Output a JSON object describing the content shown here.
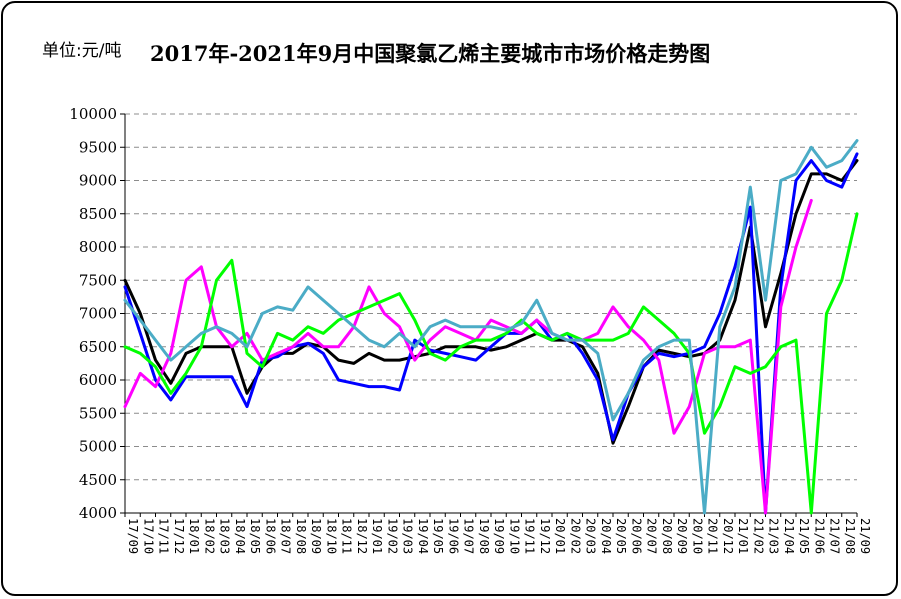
{
  "unit_label": "单位:元/吨",
  "title": "2017年-2021年9月中国聚氯乙烯主要城市市场价格走势图",
  "chart_data": {
    "type": "line",
    "title": "2017年-2021年9月中国聚氯乙烯主要城市市场价格走势图",
    "ylabel": "单位:元/吨",
    "xlabel": "",
    "ylim": [
      4000,
      10000
    ],
    "yticks": [
      4000,
      4500,
      5000,
      5500,
      6000,
      6500,
      7000,
      7500,
      8000,
      8500,
      9000,
      9500,
      10000
    ],
    "grid": true,
    "legend": "none",
    "x": [
      "17/09",
      "17/10",
      "17/11",
      "17/12",
      "18/01",
      "18/02",
      "18/03",
      "18/04",
      "18/05",
      "18/06",
      "18/07",
      "18/08",
      "18/09",
      "18/10",
      "18/11",
      "18/12",
      "19/01",
      "19/02",
      "19/03",
      "19/04",
      "19/05",
      "19/06",
      "19/07",
      "19/08",
      "19/09",
      "19/10",
      "19/11",
      "19/12",
      "20/01",
      "20/02",
      "20/03",
      "20/04",
      "20/05",
      "20/06",
      "20/07",
      "20/08",
      "20/09",
      "20/10",
      "20/11",
      "20/12",
      "21/01",
      "21/02",
      "21/03",
      "21/04",
      "21/05",
      "21/06",
      "21/07",
      "21/08",
      "21/09"
    ],
    "series": [
      {
        "color": "#000000",
        "values": [
          7500,
          7000,
          6300,
          5950,
          6400,
          6500,
          6500,
          6500,
          5800,
          6200,
          6400,
          6400,
          6550,
          6500,
          6300,
          6250,
          6400,
          6300,
          6300,
          6350,
          6400,
          6500,
          6500,
          6500,
          6450,
          6500,
          6600,
          6700,
          6600,
          6600,
          6500,
          6100,
          5050,
          5600,
          6200,
          6450,
          6400,
          6350,
          6400,
          6600,
          7200,
          8300,
          6800,
          7600,
          8500,
          9100,
          9100,
          9000,
          9300
        ]
      },
      {
        "color": "#0000ff",
        "values": [
          7400,
          6700,
          6000,
          5700,
          6050,
          6050,
          6050,
          6050,
          5600,
          6300,
          6350,
          6500,
          6550,
          6400,
          6000,
          5950,
          5900,
          5900,
          5850,
          6600,
          6450,
          6400,
          6350,
          6300,
          6500,
          6700,
          6700,
          6900,
          6600,
          6700,
          6400,
          6000,
          5100,
          5800,
          6200,
          6400,
          6350,
          6400,
          6500,
          7000,
          7700,
          8600,
          4000,
          7400,
          9000,
          9300,
          9000,
          8900,
          9400
        ]
      },
      {
        "color": "#ff00ff",
        "values": [
          5600,
          6100,
          5900,
          6400,
          7500,
          7700,
          6800,
          6500,
          6700,
          6300,
          6400,
          6500,
          6700,
          6500,
          6500,
          6800,
          7400,
          7000,
          6800,
          6300,
          6600,
          6800,
          6700,
          6600,
          6900,
          6800,
          6700,
          6900,
          6700,
          6600,
          6600,
          6700,
          7100,
          6800,
          6600,
          6300,
          5200,
          5600,
          6400,
          6500,
          6500,
          6600,
          4000,
          7100,
          8000,
          8700,
          null,
          null,
          null
        ]
      },
      {
        "color": "#00ff00",
        "values": [
          6500,
          6400,
          6200,
          5800,
          6100,
          6500,
          7500,
          7800,
          6400,
          6200,
          6700,
          6600,
          6800,
          6700,
          6900,
          7000,
          7100,
          7200,
          7300,
          6900,
          6400,
          6300,
          6500,
          6600,
          6600,
          6700,
          6900,
          6700,
          6600,
          6700,
          6600,
          6600,
          6600,
          6700,
          7100,
          6900,
          6700,
          6400,
          5200,
          5600,
          6200,
          6100,
          6200,
          6500,
          6600,
          4000,
          7000,
          7500,
          8500
        ]
      },
      {
        "color": "#4bacc6",
        "values": [
          7200,
          6900,
          6600,
          6300,
          6500,
          6700,
          6800,
          6700,
          6500,
          7000,
          7100,
          7050,
          7400,
          7200,
          7000,
          6800,
          6600,
          6500,
          6700,
          6500,
          6800,
          6900,
          6800,
          6800,
          6800,
          6750,
          6850,
          7200,
          6700,
          6600,
          6600,
          6400,
          5400,
          5800,
          6300,
          6500,
          6600,
          6600,
          4000,
          6800,
          7400,
          8900,
          7200,
          9000,
          9100,
          9500,
          9200,
          9300,
          9600
        ]
      }
    ]
  }
}
